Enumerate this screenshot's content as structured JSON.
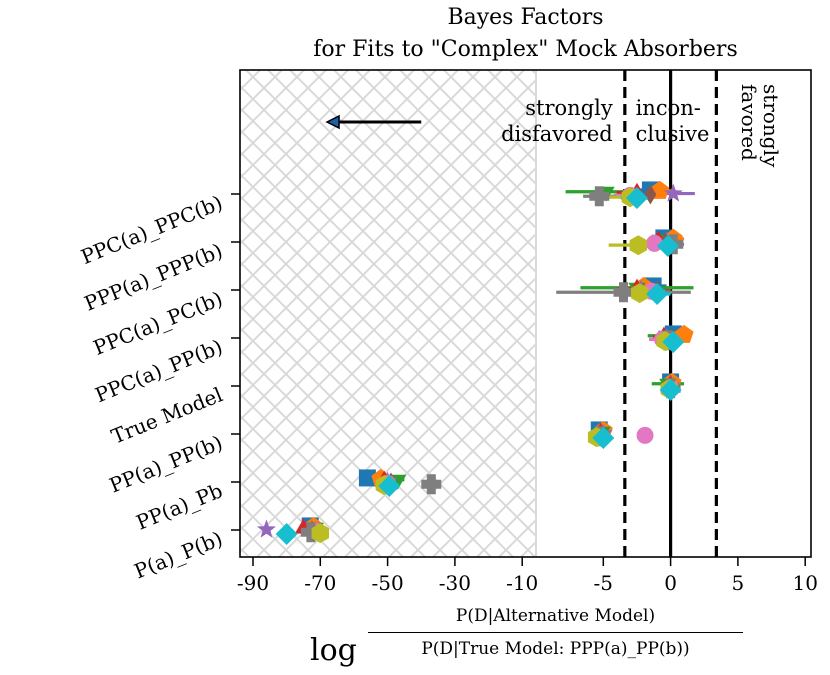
{
  "chart_data": {
    "type": "scatter",
    "title_lines": [
      "Bayes Factors",
      "for Fits to \"Complex\" Mock Absorbers"
    ],
    "xlabel": {
      "prefix": "log",
      "numerator": "P(D|Alternative Model)",
      "denominator": "P(D|True Model: PPP(a)_PP(b))"
    },
    "ylabel": "",
    "xlim": [
      -95,
      10
    ],
    "xticks": [
      -90,
      -70,
      -50,
      -30,
      -10,
      -5,
      0,
      5,
      10
    ],
    "xtick_labels": [
      "-90",
      "-70",
      "-50",
      "-30",
      "-10",
      "-5",
      "0",
      "5",
      "10"
    ],
    "xscale": "piecewise: linear from -90 to -10 (step 20 per tick), linear from -10 to 10 (step 5 per tick)",
    "categories": [
      "P(a)_P(b)",
      "PP(a)_Pb",
      "PP(a)_PP(b)",
      "True Model",
      "PPC(a)_PP(b)",
      "PPC(a)_PC(b)",
      "PPP(a)_PPP(b)",
      "PPC(a)_PPC(b)"
    ],
    "annotations": [
      {
        "text": [
          "strongly",
          "disfavored"
        ],
        "x": -5.3
      },
      {
        "text": [
          "incon-",
          "clusive"
        ],
        "x": 0
      },
      {
        "text": [
          "strongly",
          "favored"
        ],
        "x": 5,
        "rotated": true
      }
    ],
    "vertical_lines": [
      {
        "x": -3.4,
        "style": "dashed"
      },
      {
        "x": 0,
        "style": "solid"
      },
      {
        "x": 3.4,
        "style": "dashed"
      }
    ],
    "hatched_region": [
      -95,
      -10
    ],
    "arrow": {
      "from": -40,
      "to": -68,
      "direction": "left"
    },
    "series_colors": [
      "#1f77b4",
      "#ff7f0e",
      "#2ca02c",
      "#d62728",
      "#9467bd",
      "#8c564b",
      "#e377c2",
      "#7f7f7f",
      "#bcbd22",
      "#17becf"
    ],
    "markers": [
      "square",
      "pentagon",
      "triangle-down",
      "triangle-up",
      "star",
      "diamond-narrow",
      "circle",
      "plus",
      "hexagon",
      "diamond"
    ],
    "points": [
      {
        "cat": 0,
        "s": 0,
        "x": -73.0,
        "xerr": 1.0
      },
      {
        "cat": 0,
        "s": 1,
        "x": -72.0,
        "xerr": 1.0
      },
      {
        "cat": 0,
        "s": 2,
        "x": -71.5,
        "xerr": 1.2
      },
      {
        "cat": 0,
        "s": 3,
        "x": -75.0,
        "xerr": 1.0
      },
      {
        "cat": 0,
        "s": 4,
        "x": -86.0,
        "xerr": 0.5
      },
      {
        "cat": 0,
        "s": 5,
        "x": -72.5,
        "xerr": 1.0
      },
      {
        "cat": 0,
        "s": 6,
        "x": -71.0,
        "xerr": 1.0
      },
      {
        "cat": 0,
        "s": 7,
        "x": -72.8,
        "xerr": 1.0
      },
      {
        "cat": 0,
        "s": 8,
        "x": -70.0,
        "xerr": 1.0
      },
      {
        "cat": 0,
        "s": 9,
        "x": -80.0,
        "xerr": 1.0
      },
      {
        "cat": 1,
        "s": 0,
        "x": -56.0,
        "xerr": 1.0
      },
      {
        "cat": 1,
        "s": 1,
        "x": -52.0,
        "xerr": 2.0
      },
      {
        "cat": 1,
        "s": 2,
        "x": -47.0,
        "xerr": 2.0
      },
      {
        "cat": 1,
        "s": 3,
        "x": -51.0,
        "xerr": 2.0
      },
      {
        "cat": 1,
        "s": 4,
        "x": -50.0,
        "xerr": 1.5
      },
      {
        "cat": 1,
        "s": 5,
        "x": -49.0,
        "xerr": 1.5
      },
      {
        "cat": 1,
        "s": 6,
        "x": -50.0,
        "xerr": 1.5
      },
      {
        "cat": 1,
        "s": 7,
        "x": -37.0,
        "xerr": 0.5
      },
      {
        "cat": 1,
        "s": 8,
        "x": -51.0,
        "xerr": 1.5
      },
      {
        "cat": 1,
        "s": 9,
        "x": -49.5,
        "xerr": 1.5
      },
      {
        "cat": 2,
        "s": 0,
        "x": -5.3,
        "xerr": 0.3
      },
      {
        "cat": 2,
        "s": 1,
        "x": -5.0,
        "xerr": 0.3
      },
      {
        "cat": 2,
        "s": 2,
        "x": -5.1,
        "xerr": 0.3
      },
      {
        "cat": 2,
        "s": 3,
        "x": -5.2,
        "xerr": 0.3
      },
      {
        "cat": 2,
        "s": 4,
        "x": -5.0,
        "xerr": 0.3
      },
      {
        "cat": 2,
        "s": 5,
        "x": -5.3,
        "xerr": 0.3
      },
      {
        "cat": 2,
        "s": 6,
        "x": -1.9,
        "xerr": 0.2
      },
      {
        "cat": 2,
        "s": 7,
        "x": -5.3,
        "xerr": 0.3
      },
      {
        "cat": 2,
        "s": 8,
        "x": -5.5,
        "xerr": 0.3
      },
      {
        "cat": 2,
        "s": 9,
        "x": -5.0,
        "xerr": 0.3
      },
      {
        "cat": 3,
        "s": 0,
        "x": 0.0,
        "xerr": 0.4
      },
      {
        "cat": 3,
        "s": 1,
        "x": 0.1,
        "xerr": 0.4
      },
      {
        "cat": 3,
        "s": 2,
        "x": -0.2,
        "xerr": 1.2
      },
      {
        "cat": 3,
        "s": 3,
        "x": 0.0,
        "xerr": 0.4
      },
      {
        "cat": 3,
        "s": 4,
        "x": 0.0,
        "xerr": 0.4
      },
      {
        "cat": 3,
        "s": 5,
        "x": 0.0,
        "xerr": 0.4
      },
      {
        "cat": 3,
        "s": 6,
        "x": 0.0,
        "xerr": 0.4
      },
      {
        "cat": 3,
        "s": 7,
        "x": 0.0,
        "xerr": 0.4
      },
      {
        "cat": 3,
        "s": 8,
        "x": -0.1,
        "xerr": 0.4
      },
      {
        "cat": 3,
        "s": 9,
        "x": 0.0,
        "xerr": 0.4
      },
      {
        "cat": 4,
        "s": 0,
        "x": 0.2,
        "xerr": 0.5
      },
      {
        "cat": 4,
        "s": 1,
        "x": 1.0,
        "xerr": 0.5
      },
      {
        "cat": 4,
        "s": 2,
        "x": -0.3,
        "xerr": 1.4
      },
      {
        "cat": 4,
        "s": 3,
        "x": -0.5,
        "xerr": 0.8
      },
      {
        "cat": 4,
        "s": 4,
        "x": -0.3,
        "xerr": 0.8
      },
      {
        "cat": 4,
        "s": 5,
        "x": 0.1,
        "xerr": 0.5
      },
      {
        "cat": 4,
        "s": 6,
        "x": -0.6,
        "xerr": 1.0
      },
      {
        "cat": 4,
        "s": 7,
        "x": -0.2,
        "xerr": 0.5
      },
      {
        "cat": 4,
        "s": 8,
        "x": -0.4,
        "xerr": 0.5
      },
      {
        "cat": 4,
        "s": 9,
        "x": 0.2,
        "xerr": 0.5
      },
      {
        "cat": 5,
        "s": 0,
        "x": -1.3,
        "xerr": 1.0
      },
      {
        "cat": 5,
        "s": 1,
        "x": -2.0,
        "xerr": 1.0
      },
      {
        "cat": 5,
        "s": 2,
        "x": -2.5,
        "xerr": 4.2
      },
      {
        "cat": 5,
        "s": 3,
        "x": -2.5,
        "xerr": 1.5
      },
      {
        "cat": 5,
        "s": 4,
        "x": -2.2,
        "xerr": 1.0
      },
      {
        "cat": 5,
        "s": 5,
        "x": -1.0,
        "xerr": 1.0
      },
      {
        "cat": 5,
        "s": 6,
        "x": -1.4,
        "xerr": 1.0
      },
      {
        "cat": 5,
        "s": 7,
        "x": -3.5,
        "xerr": 5.0
      },
      {
        "cat": 5,
        "s": 8,
        "x": -2.3,
        "xerr": 1.0
      },
      {
        "cat": 5,
        "s": 9,
        "x": -1.0,
        "xerr": 1.0
      },
      {
        "cat": 6,
        "s": 0,
        "x": -0.5,
        "xerr": 0.8
      },
      {
        "cat": 6,
        "s": 1,
        "x": 0.2,
        "xerr": 0.8
      },
      {
        "cat": 6,
        "s": 2,
        "x": -0.8,
        "xerr": 0.8
      },
      {
        "cat": 6,
        "s": 3,
        "x": -0.9,
        "xerr": 0.8
      },
      {
        "cat": 6,
        "s": 4,
        "x": -0.3,
        "xerr": 0.8
      },
      {
        "cat": 6,
        "s": 5,
        "x": -0.4,
        "xerr": 0.8
      },
      {
        "cat": 6,
        "s": 6,
        "x": -1.2,
        "xerr": 0.8
      },
      {
        "cat": 6,
        "s": 7,
        "x": 0.2,
        "xerr": 0.8
      },
      {
        "cat": 6,
        "s": 8,
        "x": -2.4,
        "xerr": 2.2
      },
      {
        "cat": 6,
        "s": 9,
        "x": -0.2,
        "xerr": 0.8
      },
      {
        "cat": 7,
        "s": 0,
        "x": -1.5,
        "xerr": 1.0
      },
      {
        "cat": 7,
        "s": 1,
        "x": -0.8,
        "xerr": 1.0
      },
      {
        "cat": 7,
        "s": 2,
        "x": -4.8,
        "xerr": 3.0
      },
      {
        "cat": 7,
        "s": 3,
        "x": -2.5,
        "xerr": 1.5
      },
      {
        "cat": 7,
        "s": 4,
        "x": 0.2,
        "xerr": 1.6
      },
      {
        "cat": 7,
        "s": 5,
        "x": -1.5,
        "xerr": 1.0
      },
      {
        "cat": 7,
        "s": 6,
        "x": -3.0,
        "xerr": 1.2
      },
      {
        "cat": 7,
        "s": 7,
        "x": -5.3,
        "xerr": 1.2
      },
      {
        "cat": 7,
        "s": 8,
        "x": -3.0,
        "xerr": 1.8
      },
      {
        "cat": 7,
        "s": 9,
        "x": -2.5,
        "xerr": 1.2
      }
    ]
  }
}
